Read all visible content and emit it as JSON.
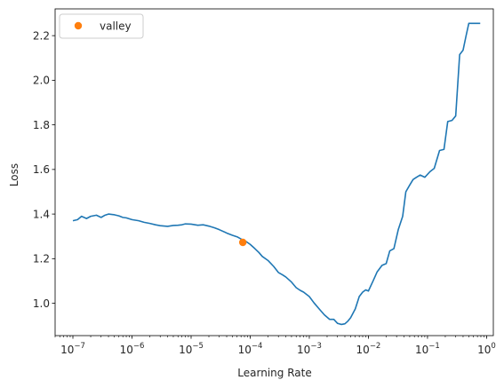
{
  "chart_data": {
    "type": "line",
    "xscale": "log",
    "xlabel": "Learning Rate",
    "ylabel": "Loss",
    "xlim": [
      5e-08,
      1.3
    ],
    "ylim": [
      0.855,
      2.32
    ],
    "xticks": [
      1e-07,
      1e-06,
      1e-05,
      0.0001,
      0.001,
      0.01,
      0.1,
      1
    ],
    "xtick_labels": [
      {
        "base": "10",
        "exp": "−7"
      },
      {
        "base": "10",
        "exp": "−6"
      },
      {
        "base": "10",
        "exp": "−5"
      },
      {
        "base": "10",
        "exp": "−4"
      },
      {
        "base": "10",
        "exp": "−3"
      },
      {
        "base": "10",
        "exp": "−2"
      },
      {
        "base": "10",
        "exp": "−1"
      },
      {
        "base": "10",
        "exp": "0"
      }
    ],
    "yticks": [
      1.0,
      1.2,
      1.4,
      1.6,
      1.8,
      2.0,
      2.2
    ],
    "ytick_labels": [
      "1.0",
      "1.2",
      "1.4",
      "1.6",
      "1.8",
      "2.0",
      "2.2"
    ],
    "legend": {
      "placement": "top-left",
      "entries": [
        {
          "label": "valley",
          "color": "#ff7f0e",
          "marker": "circle"
        }
      ]
    },
    "series": [
      {
        "color": "#1f77b4",
        "x": [
          1e-07,
          1.2e-07,
          1.4e-07,
          1.7e-07,
          2e-07,
          2.5e-07,
          3e-07,
          3.5e-07,
          4e-07,
          5e-07,
          6e-07,
          7e-07,
          8e-07,
          1e-06,
          1.3e-06,
          1.6e-06,
          2e-06,
          2.5e-06,
          3e-06,
          4e-06,
          5e-06,
          6e-06,
          7e-06,
          8e-06,
          1e-05,
          1.3e-05,
          1.6e-05,
          2e-05,
          2.5e-05,
          3e-05,
          4e-05,
          5e-05,
          6e-05,
          7e-05,
          8e-05,
          0.0001,
          0.00012,
          0.00014,
          0.00016,
          0.0002,
          0.00025,
          0.0003,
          0.00035,
          0.0004,
          0.0005,
          0.0006,
          0.0007,
          0.0008,
          0.001,
          0.0012,
          0.0015,
          0.0018,
          0.0022,
          0.0026,
          0.003,
          0.0035,
          0.004,
          0.0045,
          0.005,
          0.006,
          0.007,
          0.008,
          0.009,
          0.01,
          0.012,
          0.014,
          0.017,
          0.02,
          0.023,
          0.027,
          0.032,
          0.038,
          0.043,
          0.05,
          0.057,
          0.065,
          0.075,
          0.09,
          0.11,
          0.13,
          0.16,
          0.19,
          0.22,
          0.26,
          0.3,
          0.35,
          0.4,
          0.45,
          0.5,
          0.6,
          0.7,
          0.78
        ],
        "y": [
          1.37,
          1.375,
          1.39,
          1.38,
          1.39,
          1.395,
          1.385,
          1.395,
          1.4,
          1.397,
          1.392,
          1.385,
          1.383,
          1.375,
          1.37,
          1.363,
          1.358,
          1.352,
          1.348,
          1.345,
          1.349,
          1.35,
          1.352,
          1.356,
          1.355,
          1.35,
          1.352,
          1.346,
          1.338,
          1.33,
          1.315,
          1.305,
          1.298,
          1.288,
          1.282,
          1.264,
          1.245,
          1.228,
          1.21,
          1.192,
          1.165,
          1.138,
          1.128,
          1.118,
          1.095,
          1.07,
          1.058,
          1.05,
          1.03,
          1.002,
          0.972,
          0.948,
          0.928,
          0.928,
          0.91,
          0.905,
          0.908,
          0.92,
          0.935,
          0.975,
          1.03,
          1.05,
          1.06,
          1.055,
          1.1,
          1.14,
          1.17,
          1.178,
          1.235,
          1.245,
          1.33,
          1.39,
          1.5,
          1.53,
          1.555,
          1.565,
          1.575,
          1.565,
          1.59,
          1.605,
          1.685,
          1.69,
          1.815,
          1.82,
          1.84,
          2.115,
          2.135,
          2.2,
          2.255,
          2.255,
          2.255,
          2.255
        ]
      }
    ],
    "valley": {
      "x": 7.5e-05,
      "y": 1.273
    }
  }
}
